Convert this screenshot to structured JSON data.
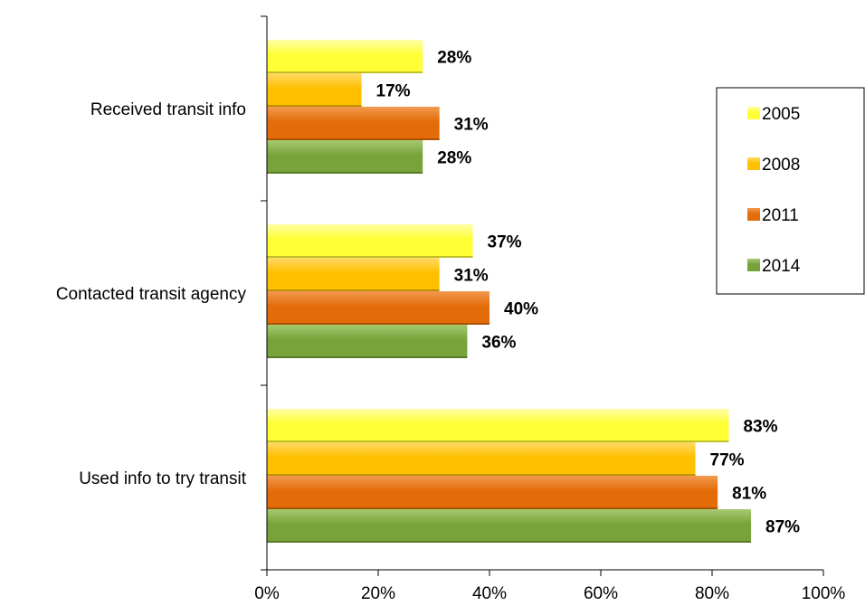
{
  "chart_data": {
    "type": "bar",
    "orientation": "horizontal",
    "categories": [
      "Received transit info",
      "Contacted transit agency",
      "Used info to try transit"
    ],
    "series": [
      {
        "name": "2005",
        "values": [
          28,
          37,
          83
        ],
        "labels": [
          "28%",
          "37%",
          "83%"
        ],
        "color": "#FFFF33",
        "color_light": "#FFFFA6"
      },
      {
        "name": "2008",
        "values": [
          17,
          31,
          77
        ],
        "labels": [
          "17%",
          "31%",
          "77%"
        ],
        "color": "#FFC000",
        "color_light": "#FFDA66"
      },
      {
        "name": "2011",
        "values": [
          31,
          40,
          81
        ],
        "labels": [
          "31%",
          "40%",
          "81%"
        ],
        "color": "#E36C09",
        "color_light": "#F29A4E"
      },
      {
        "name": "2014",
        "values": [
          28,
          36,
          87
        ],
        "labels": [
          "28%",
          "36%",
          "87%"
        ],
        "color": "#77A33A",
        "color_light": "#A6CA70"
      }
    ],
    "x_ticks": [
      "0%",
      "20%",
      "40%",
      "60%",
      "80%",
      "100%"
    ],
    "xlim": [
      0,
      100
    ],
    "xlabel": "",
    "ylabel": "",
    "title": "",
    "grid": false,
    "legend": {
      "position": "right",
      "entries": [
        "2005",
        "2008",
        "2011",
        "2014"
      ]
    }
  }
}
